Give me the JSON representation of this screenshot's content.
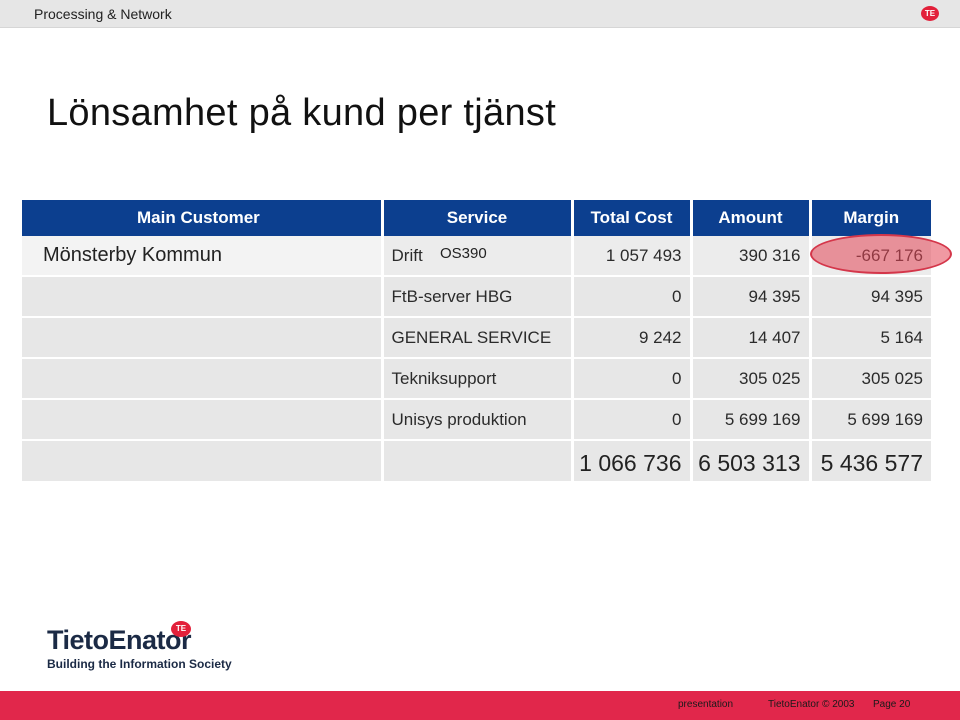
{
  "header": {
    "title": "Processing & Network",
    "badge": "TE"
  },
  "slide": {
    "title": "Lönsamhet på kund per tjänst"
  },
  "table": {
    "columns": [
      "Main Customer",
      "Service",
      "Total Cost",
      "Amount",
      "Margin"
    ],
    "customer": "Mönsterby Kommun",
    "rows": [
      {
        "service": "Drift",
        "cost": "1 057 493",
        "amount": "390 316",
        "margin": "-667 176"
      },
      {
        "service": "FtB-server HBG",
        "cost": "0",
        "amount": "94 395",
        "margin": "94 395"
      },
      {
        "service": "GENERAL SERVICE",
        "cost": "9 242",
        "amount": "14 407",
        "margin": "5 164"
      },
      {
        "service": "Tekniksupport",
        "cost": "0",
        "amount": "305 025",
        "margin": "305 025"
      },
      {
        "service": "Unisys produktion",
        "cost": "0",
        "amount": "5 699 169",
        "margin": "5 699 169"
      }
    ],
    "total": {
      "cost": "1 066 736",
      "amount": "6 503 313",
      "margin": "5 436 577"
    },
    "annotation": "OS390",
    "highlight_color": "#e44655"
  },
  "logo": {
    "name": "TietoEnator",
    "badge": "TE",
    "tagline": "Building the Information Society"
  },
  "footer": {
    "left": "presentation",
    "middle": "TietoEnator © 2003",
    "page": "Page 20"
  },
  "colors": {
    "header_blue": "#0c3f8f",
    "brand_red": "#e1274b"
  }
}
